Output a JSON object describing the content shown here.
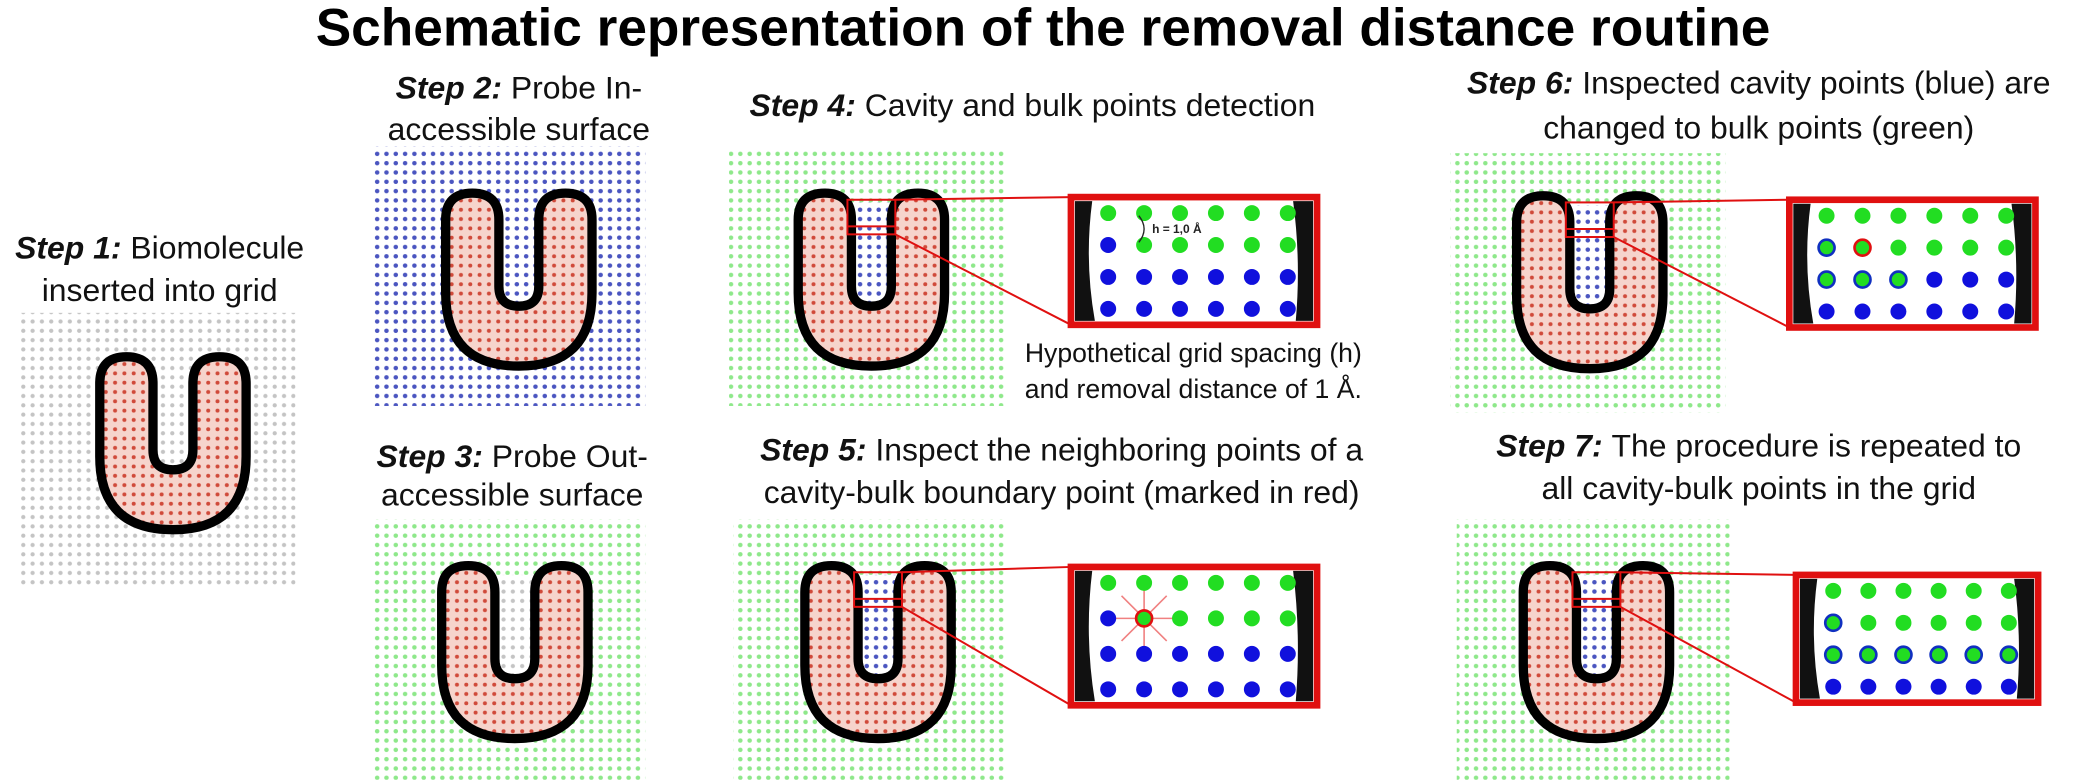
{
  "title": "Schematic representation of the removal distance routine",
  "steps": [
    {
      "label": "Step 1:",
      "lines": [
        "Biomolecule",
        "inserted into grid"
      ]
    },
    {
      "label": "Step 2:",
      "lines": [
        "Probe In-",
        "accessible surface"
      ]
    },
    {
      "label": "Step 3:",
      "lines": [
        "Probe Out-",
        "accessible surface"
      ]
    },
    {
      "label": "Step 4:",
      "lines": [
        "Cavity and bulk points detection"
      ]
    },
    {
      "label": "Step 5:",
      "lines": [
        "Inspect the neighboring points of a",
        "cavity-bulk boundary point (marked in red)"
      ]
    },
    {
      "label": "Step 6:",
      "lines": [
        "Inspected cavity points (blue) are",
        "changed to bulk points (green)"
      ]
    },
    {
      "label": "Step 7:",
      "lines": [
        "The procedure is repeated to",
        "all cavity-bulk points in the grid"
      ]
    }
  ],
  "spacing_label": "h = 1,0 Å",
  "caption": [
    "Hypothetical grid spacing (h)",
    "and removal distance of 1 Å."
  ]
}
